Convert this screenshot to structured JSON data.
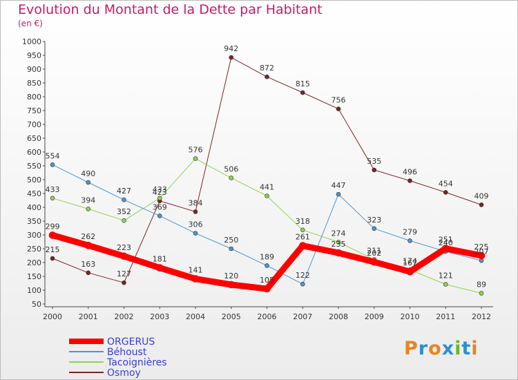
{
  "title": "Evolution du Montant de la Dette par Habitant",
  "subtitle": "(en €)",
  "brand": {
    "text": "Proxiti",
    "colors": [
      "#e8841e",
      "#2c8fd6",
      "#e8841e",
      "#2c8fd6",
      "#6bb62b",
      "#2c8fd6",
      "#e8841e"
    ]
  },
  "chart_data": {
    "type": "line",
    "x": [
      2000,
      2001,
      2002,
      2003,
      2004,
      2005,
      2006,
      2007,
      2008,
      2009,
      2010,
      2011,
      2012
    ],
    "ylim": [
      50,
      1000
    ],
    "yticks": [
      50,
      100,
      150,
      200,
      250,
      300,
      350,
      400,
      450,
      500,
      550,
      600,
      650,
      700,
      750,
      800,
      850,
      900,
      950,
      1000
    ],
    "grid": false,
    "legend_position": "bottom-left",
    "series": [
      {
        "name": "ORGERUS",
        "color": "#ff0000",
        "width": 9,
        "values": [
          299,
          262,
          223,
          181,
          141,
          120,
          105,
          261,
          235,
          202,
          167,
          251,
          225
        ],
        "labels": [
          "299",
          "262",
          "223",
          "181",
          "141",
          "120",
          "105",
          "261",
          "235",
          "202",
          "167",
          "251",
          "225"
        ]
      },
      {
        "name": "Béhoust",
        "color": "#4f94cd",
        "width": 1,
        "values": [
          554,
          490,
          427,
          369,
          306,
          250,
          189,
          122,
          447,
          323,
          279,
          240,
          207
        ],
        "labels": [
          "554",
          "490",
          "427",
          "369",
          "306",
          "250",
          "189",
          "122",
          "447",
          "323",
          "279",
          "240",
          "207"
        ]
      },
      {
        "name": "Tacoignières",
        "color": "#8fd14f",
        "width": 1,
        "values": [
          433,
          394,
          352,
          433,
          576,
          506,
          441,
          318,
          274,
          211,
          174,
          121,
          89
        ],
        "labels": [
          "433",
          "394",
          "352",
          "433",
          "576",
          "506",
          "441",
          "318",
          "274",
          "211",
          "174",
          "121",
          "89"
        ]
      },
      {
        "name": "Osmoy",
        "color": "#7a2323",
        "width": 1,
        "values": [
          215,
          163,
          127,
          423,
          384,
          942,
          872,
          815,
          756,
          535,
          496,
          454,
          409
        ],
        "labels": [
          "215",
          "163",
          "127",
          "423",
          "384",
          "942",
          "872",
          "815",
          "756",
          "535",
          "496",
          "454",
          "409"
        ]
      }
    ]
  }
}
